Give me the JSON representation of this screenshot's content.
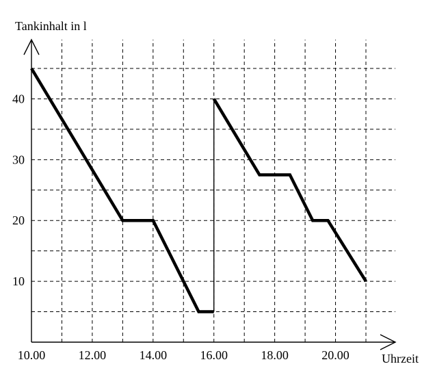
{
  "chart_data": {
    "type": "line",
    "ylabel": "Tankinhalt in l",
    "xlabel": "Uhrzeit",
    "x_ticks": [
      "10.00",
      "12.00",
      "14.00",
      "16.00",
      "18.00",
      "20.00"
    ],
    "y_ticks": [
      "10",
      "20",
      "30",
      "40"
    ],
    "xlim": [
      10,
      21
    ],
    "ylim": [
      0,
      45
    ],
    "grid": true,
    "grid_x_step": 1,
    "grid_y_step": 5,
    "series": [
      {
        "style": "thick",
        "x": [
          10,
          13,
          14,
          15.5,
          16
        ],
        "y": [
          45,
          20,
          20,
          5,
          5
        ]
      },
      {
        "style": "thin",
        "x": [
          16,
          16
        ],
        "y": [
          5,
          40
        ]
      },
      {
        "style": "thick",
        "x": [
          16,
          17.5,
          18.5,
          19.25,
          19.75,
          21
        ],
        "y": [
          40,
          27.5,
          27.5,
          20,
          20,
          10
        ]
      }
    ]
  }
}
